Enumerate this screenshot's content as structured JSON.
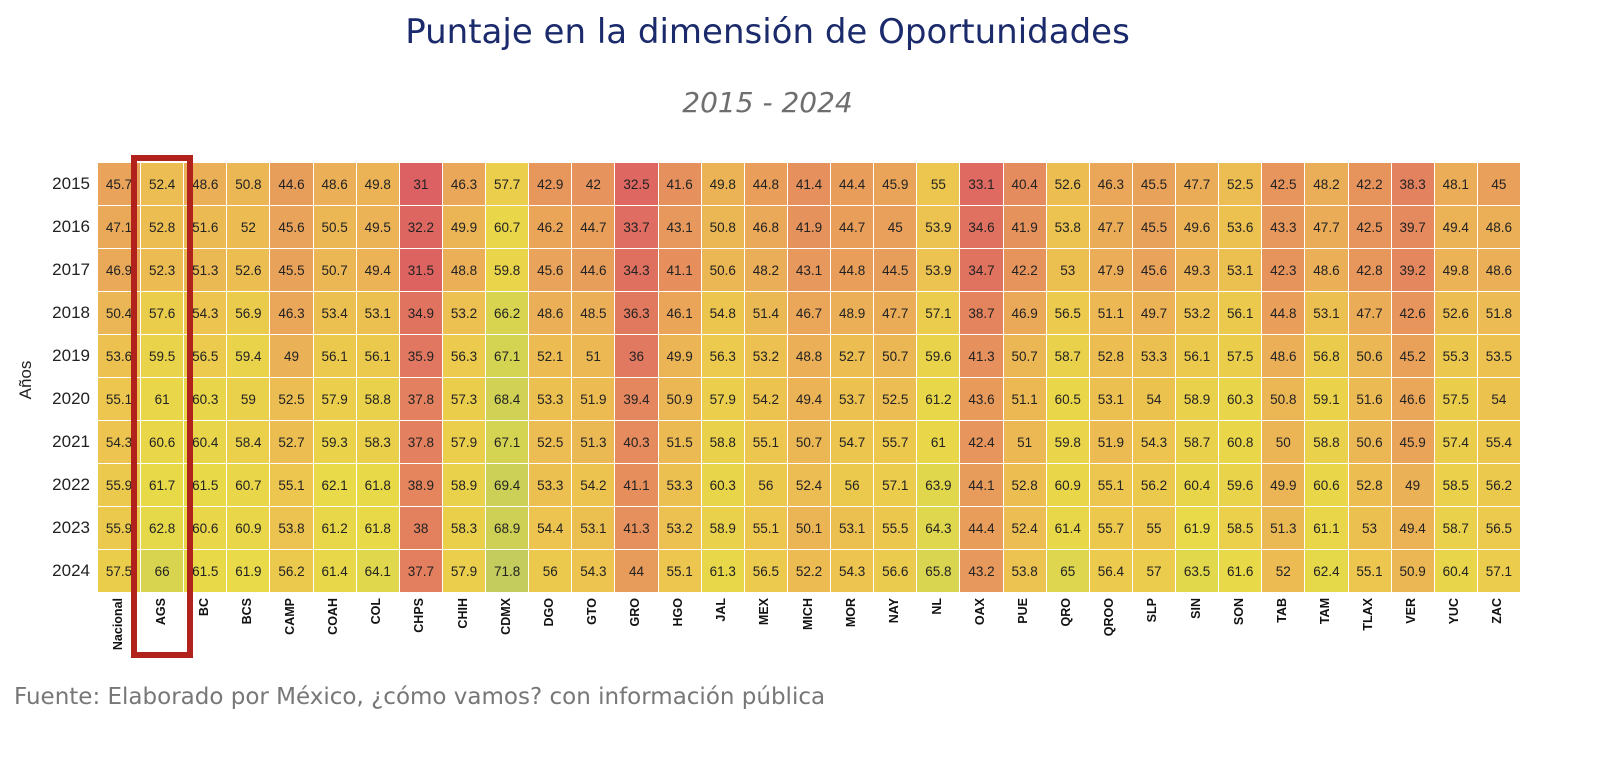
{
  "chart_data": {
    "type": "heatmap",
    "title": "Puntaje en la dimensión de Oportunidades",
    "subtitle": "2015 - 2024",
    "ylabel": "Años",
    "xlabel": "",
    "source": "Fuente: Elaborado por México, ¿cómo vamos? con información pública",
    "highlighted_column": "AGS",
    "highlight_color": "#b2221d",
    "color_scale": {
      "low": "#db5c62",
      "mid": "#ebad58",
      "high": "#e8da48",
      "max": "#c2cc5c"
    },
    "columns": [
      "Nacional",
      "AGS",
      "BC",
      "BCS",
      "CAMP",
      "COAH",
      "COL",
      "CHPS",
      "CHIH",
      "CDMX",
      "DGO",
      "GTO",
      "GRO",
      "HGO",
      "JAL",
      "MEX",
      "MICH",
      "MOR",
      "NAY",
      "NL",
      "OAX",
      "PUE",
      "QRO",
      "QROO",
      "SLP",
      "SIN",
      "SON",
      "TAB",
      "TAM",
      "TLAX",
      "VER",
      "YUC",
      "ZAC"
    ],
    "rows": [
      "2015",
      "2016",
      "2017",
      "2018",
      "2019",
      "2020",
      "2021",
      "2022",
      "2023",
      "2024"
    ],
    "values": [
      [
        45.7,
        52.4,
        48.6,
        50.8,
        44.6,
        48.6,
        49.8,
        31,
        46.3,
        57.7,
        42.9,
        42,
        32.5,
        41.6,
        49.8,
        44.8,
        41.4,
        44.4,
        45.9,
        55,
        33.1,
        40.4,
        52.6,
        46.3,
        45.5,
        47.7,
        52.5,
        42.5,
        48.2,
        42.2,
        38.3,
        48.1,
        45
      ],
      [
        47.1,
        52.8,
        51.6,
        52,
        45.6,
        50.5,
        49.5,
        32.2,
        49.9,
        60.7,
        46.2,
        44.7,
        33.7,
        43.1,
        50.8,
        46.8,
        41.9,
        44.7,
        45,
        53.9,
        34.6,
        41.9,
        53.8,
        47.7,
        45.5,
        49.6,
        53.6,
        43.3,
        47.7,
        42.5,
        39.7,
        49.4,
        48.6
      ],
      [
        46.9,
        52.3,
        51.3,
        52.6,
        45.5,
        50.7,
        49.4,
        31.5,
        48.8,
        59.8,
        45.6,
        44.6,
        34.3,
        41.1,
        50.6,
        48.2,
        43.1,
        44.8,
        44.5,
        53.9,
        34.7,
        42.2,
        53,
        47.9,
        45.6,
        49.3,
        53.1,
        42.3,
        48.6,
        42.8,
        39.2,
        49.8,
        48.6
      ],
      [
        50.4,
        57.6,
        54.3,
        56.9,
        46.3,
        53.4,
        53.1,
        34.9,
        53.2,
        66.2,
        48.6,
        48.5,
        36.3,
        46.1,
        54.8,
        51.4,
        46.7,
        48.9,
        47.7,
        57.1,
        38.7,
        46.9,
        56.5,
        51.1,
        49.7,
        53.2,
        56.1,
        44.8,
        53.1,
        47.7,
        42.6,
        52.6,
        51.8
      ],
      [
        53.6,
        59.5,
        56.5,
        59.4,
        49,
        56.1,
        56.1,
        35.9,
        56.3,
        67.1,
        52.1,
        51,
        36,
        49.9,
        56.3,
        53.2,
        48.8,
        52.7,
        50.7,
        59.6,
        41.3,
        50.7,
        58.7,
        52.8,
        53.3,
        56.1,
        57.5,
        48.6,
        56.8,
        50.6,
        45.2,
        55.3,
        53.5
      ],
      [
        55.1,
        61,
        60.3,
        59,
        52.5,
        57.9,
        58.8,
        37.8,
        57.3,
        68.4,
        53.3,
        51.9,
        39.4,
        50.9,
        57.9,
        54.2,
        49.4,
        53.7,
        52.5,
        61.2,
        43.6,
        51.1,
        60.5,
        53.1,
        54,
        58.9,
        60.3,
        50.8,
        59.1,
        51.6,
        46.6,
        57.5,
        54
      ],
      [
        54.3,
        60.6,
        60.4,
        58.4,
        52.7,
        59.3,
        58.3,
        37.8,
        57.9,
        67.1,
        52.5,
        51.3,
        40.3,
        51.5,
        58.8,
        55.1,
        50.7,
        54.7,
        55.7,
        61,
        42.4,
        51,
        59.8,
        51.9,
        54.3,
        58.7,
        60.8,
        50,
        58.8,
        50.6,
        45.9,
        57.4,
        55.4
      ],
      [
        55.9,
        61.7,
        61.5,
        60.7,
        55.1,
        62.1,
        61.8,
        38.9,
        58.9,
        69.4,
        53.3,
        54.2,
        41.1,
        53.3,
        60.3,
        56,
        52.4,
        56,
        57.1,
        63.9,
        44.1,
        52.8,
        60.9,
        55.1,
        56.2,
        60.4,
        59.6,
        49.9,
        60.6,
        52.8,
        49,
        58.5,
        56.2
      ],
      [
        55.9,
        62.8,
        60.6,
        60.9,
        53.8,
        61.2,
        61.8,
        38,
        58.3,
        68.9,
        54.4,
        53.1,
        41.3,
        53.2,
        58.9,
        55.1,
        50.1,
        53.1,
        55.5,
        64.3,
        44.4,
        52.4,
        61.4,
        55.7,
        55,
        61.9,
        58.5,
        51.3,
        61.1,
        53,
        49.4,
        58.7,
        56.5
      ],
      [
        57.5,
        66,
        61.5,
        61.9,
        56.2,
        61.4,
        64.1,
        37.7,
        57.9,
        71.8,
        56,
        54.3,
        44,
        55.1,
        61.3,
        56.5,
        52.2,
        54.3,
        56.6,
        65.8,
        43.2,
        53.8,
        65,
        56.4,
        57,
        63.5,
        61.6,
        52,
        62.4,
        55.1,
        50.9,
        60.4,
        57.1
      ]
    ]
  }
}
